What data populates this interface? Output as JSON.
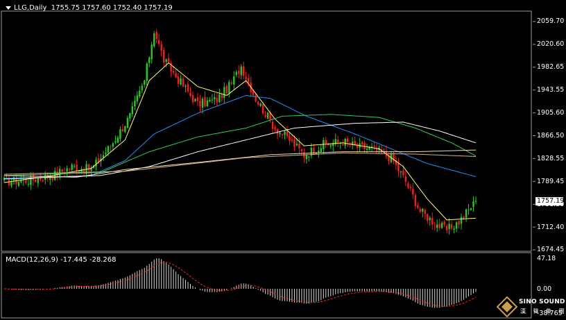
{
  "header": {
    "symbol": "LLG,Daily",
    "ohlc": "1755.75 1757.60 1752.40 1757.19"
  },
  "macd": {
    "label": "MACD(12,26,9) -17.445 -28.268",
    "axis": [
      "47.18",
      "0.00",
      "-38.765"
    ]
  },
  "price_axis": [
    "2059.70",
    "2020.60",
    "1982.65",
    "1943.55",
    "1905.60",
    "1866.50",
    "1828.55",
    "1789.45",
    "1751.50",
    "1712.40",
    "1674.45"
  ],
  "last_price": "1757.19",
  "logo": {
    "brand": "SINO SOUND",
    "brand_cn": "漢 聲 集 團"
  },
  "colors": {
    "background": "#000000",
    "bull": "#22cc22",
    "bear": "#ff1a1a",
    "ma_fast": "#ffff66",
    "ma_blue": "#1e90ff",
    "ma_green": "#33cc55",
    "ma_white": "#ffffff",
    "ma_slow": "#f5deb3",
    "macd_hist": "#d9d9d9",
    "macd_signal": "#ff2222"
  },
  "chart_data": {
    "type": "candlestick",
    "symbol": "LLG",
    "timeframe": "Daily",
    "ylim": [
      1674.45,
      2059.7
    ],
    "last": {
      "open": 1755.75,
      "high": 1757.6,
      "low": 1752.4,
      "close": 1757.19
    },
    "close_path": [
      [
        0,
        1790
      ],
      [
        10,
        1792
      ],
      [
        20,
        1800
      ],
      [
        28,
        1815
      ],
      [
        36,
        1810
      ],
      [
        44,
        1850
      ],
      [
        52,
        1900
      ],
      [
        58,
        1960
      ],
      [
        62,
        2045
      ],
      [
        66,
        1995
      ],
      [
        72,
        1962
      ],
      [
        80,
        1920
      ],
      [
        88,
        1928
      ],
      [
        94,
        1955
      ],
      [
        98,
        1985
      ],
      [
        104,
        1930
      ],
      [
        112,
        1880
      ],
      [
        118,
        1860
      ],
      [
        124,
        1835
      ],
      [
        132,
        1852
      ],
      [
        140,
        1858
      ],
      [
        146,
        1848
      ],
      [
        152,
        1845
      ],
      [
        160,
        1830
      ],
      [
        166,
        1790
      ],
      [
        172,
        1740
      ],
      [
        178,
        1720
      ],
      [
        183,
        1708
      ],
      [
        188,
        1722
      ],
      [
        195,
        1757
      ]
    ],
    "moving_averages": [
      {
        "color": "#ffff66",
        "values": [
          [
            0,
            1788
          ],
          [
            20,
            1800
          ],
          [
            36,
            1812
          ],
          [
            50,
            1860
          ],
          [
            60,
            1960
          ],
          [
            68,
            1990
          ],
          [
            80,
            1950
          ],
          [
            92,
            1935
          ],
          [
            100,
            1960
          ],
          [
            112,
            1895
          ],
          [
            124,
            1850
          ],
          [
            140,
            1855
          ],
          [
            155,
            1845
          ],
          [
            165,
            1815
          ],
          [
            175,
            1760
          ],
          [
            183,
            1725
          ],
          [
            195,
            1728
          ]
        ]
      },
      {
        "color": "#1e90ff",
        "values": [
          [
            0,
            1795
          ],
          [
            36,
            1800
          ],
          [
            50,
            1825
          ],
          [
            62,
            1870
          ],
          [
            80,
            1905
          ],
          [
            100,
            1935
          ],
          [
            110,
            1930
          ],
          [
            125,
            1900
          ],
          [
            145,
            1870
          ],
          [
            160,
            1845
          ],
          [
            175,
            1820
          ],
          [
            195,
            1798
          ]
        ]
      },
      {
        "color": "#33cc55",
        "values": [
          [
            0,
            1800
          ],
          [
            40,
            1805
          ],
          [
            60,
            1840
          ],
          [
            80,
            1865
          ],
          [
            100,
            1880
          ],
          [
            115,
            1900
          ],
          [
            135,
            1903
          ],
          [
            155,
            1898
          ],
          [
            170,
            1880
          ],
          [
            185,
            1855
          ],
          [
            195,
            1833
          ]
        ]
      },
      {
        "color": "#ffffff",
        "values": [
          [
            0,
            1794
          ],
          [
            40,
            1800
          ],
          [
            60,
            1815
          ],
          [
            80,
            1840
          ],
          [
            100,
            1860
          ],
          [
            120,
            1880
          ],
          [
            145,
            1888
          ],
          [
            165,
            1890
          ],
          [
            180,
            1875
          ],
          [
            195,
            1855
          ]
        ]
      },
      {
        "color": "#f5deb3",
        "values": [
          [
            0,
            1800
          ],
          [
            30,
            1797
          ],
          [
            50,
            1810
          ],
          [
            80,
            1822
          ],
          [
            110,
            1835
          ],
          [
            140,
            1840
          ],
          [
            170,
            1840
          ],
          [
            195,
            1843
          ]
        ]
      },
      {
        "color": "#d2b48c",
        "values": [
          [
            0,
            1802
          ],
          [
            50,
            1807
          ],
          [
            100,
            1830
          ],
          [
            140,
            1838
          ],
          [
            170,
            1836
          ],
          [
            195,
            1832
          ]
        ]
      }
    ]
  }
}
